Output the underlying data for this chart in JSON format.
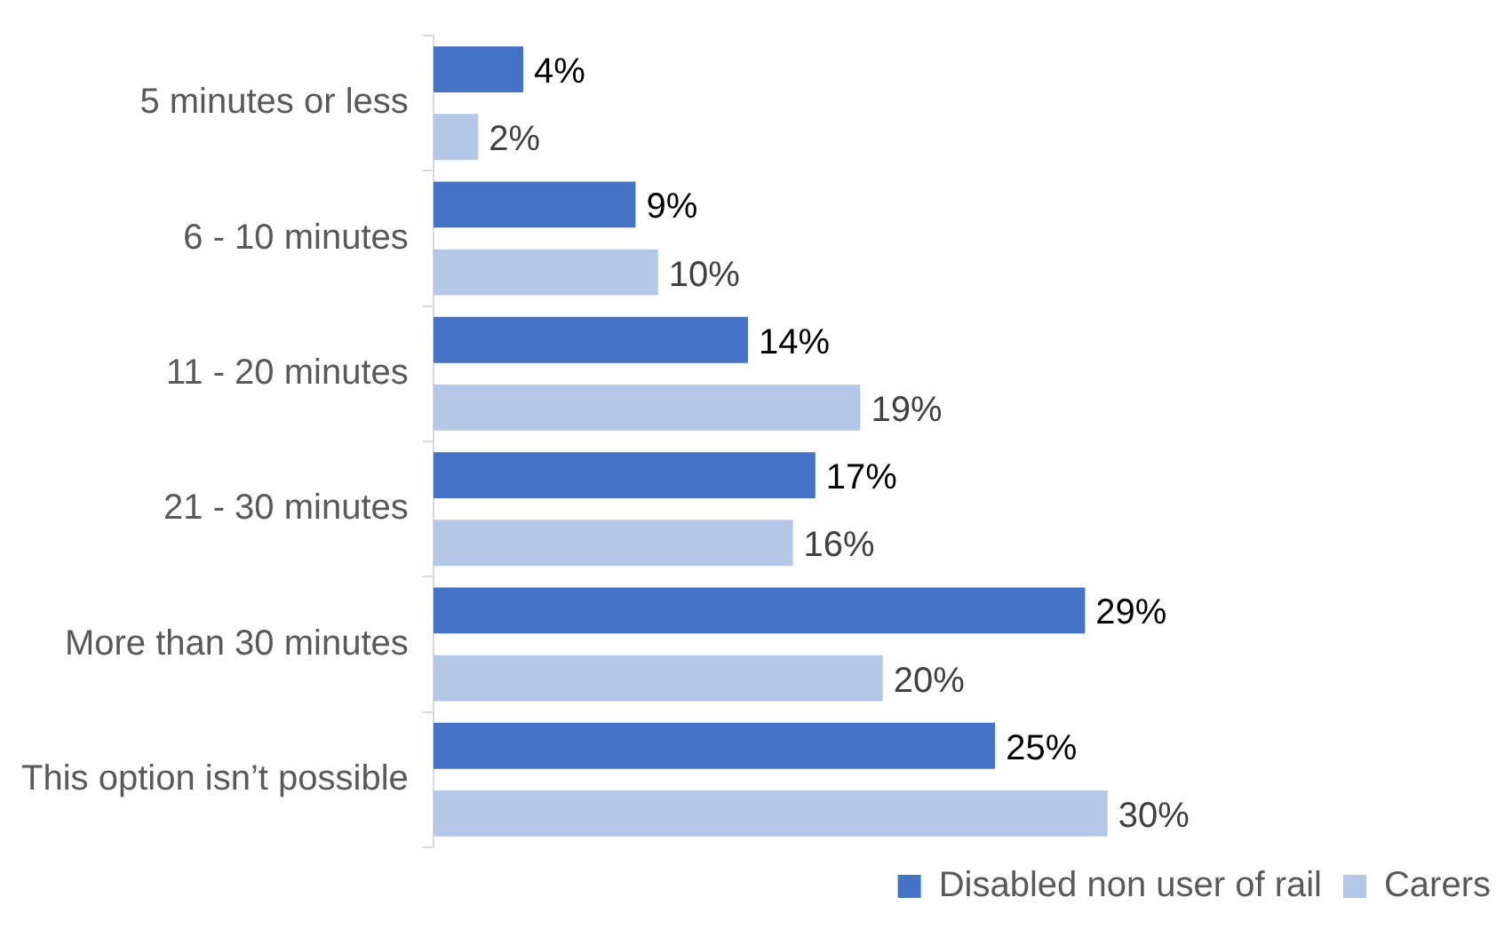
{
  "chart_data": {
    "type": "bar",
    "orientation": "horizontal",
    "categories": [
      "5 minutes or less",
      "6 - 10 minutes",
      "11 - 20 minutes",
      "21 - 30 minutes",
      "More than 30 minutes",
      "This option isn’t possible"
    ],
    "series": [
      {
        "name": "Disabled non user of rail",
        "color": "#4472c4",
        "values": [
          4,
          9,
          14,
          17,
          29,
          25
        ],
        "value_labels": [
          "4%",
          "9%",
          "14%",
          "17%",
          "29%",
          "25%"
        ]
      },
      {
        "name": "Carers",
        "color": "#b4c7e7",
        "values": [
          2,
          10,
          19,
          16,
          20,
          30
        ],
        "value_labels": [
          "2%",
          "10%",
          "19%",
          "16%",
          "20%",
          "30%"
        ]
      }
    ],
    "legend": "bottom right",
    "tick_labels": "y"
  }
}
